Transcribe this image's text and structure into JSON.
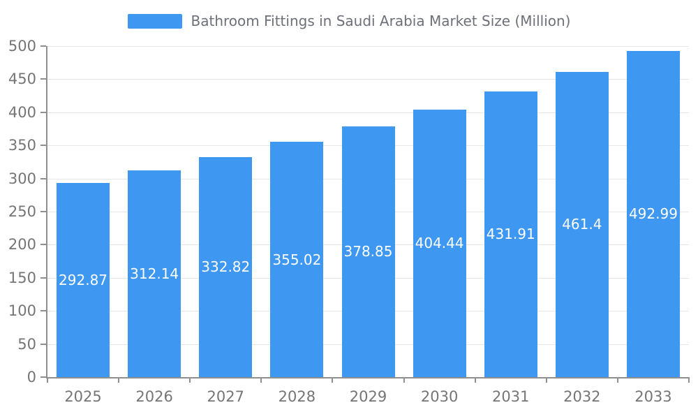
{
  "chart_data": {
    "type": "bar",
    "title": "Bathroom Fittings in Saudi Arabia Market Size (Million)",
    "categories": [
      "2025",
      "2026",
      "2027",
      "2028",
      "2029",
      "2030",
      "2031",
      "2032",
      "2033"
    ],
    "values": [
      292.87,
      312.14,
      332.82,
      355.02,
      378.85,
      404.44,
      431.91,
      461.4,
      492.99
    ],
    "value_labels": [
      "292.87",
      "312.14",
      "332.82",
      "355.02",
      "378.85",
      "404.44",
      "431.91",
      "461.4",
      "492.99"
    ],
    "ylim": [
      0,
      500
    ],
    "yticks": [
      0,
      50,
      100,
      150,
      200,
      250,
      300,
      350,
      400,
      450,
      500
    ],
    "xlabel": "",
    "ylabel": "",
    "grid": true,
    "legend_position": "top",
    "colors": {
      "bar": "#3E97F0",
      "value_label": "#FFFFFF",
      "axis_text": "#757575",
      "title_text": "#6E7079",
      "grid": "#E6E6E6",
      "axis_line": "#8F8F8F",
      "background": "#FFFFFF"
    }
  }
}
